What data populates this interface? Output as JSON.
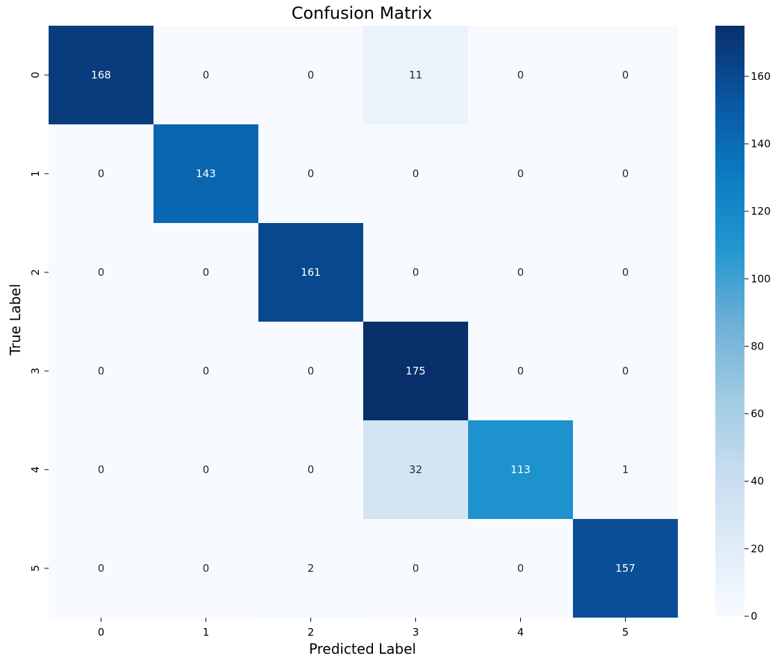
{
  "chart_data": {
    "type": "heatmap",
    "title": "Confusion Matrix",
    "xlabel": "Predicted Label",
    "ylabel": "True Label",
    "x_categories": [
      "0",
      "1",
      "2",
      "3",
      "4",
      "5"
    ],
    "y_categories": [
      "0",
      "1",
      "2",
      "3",
      "4",
      "5"
    ],
    "matrix": [
      [
        168,
        0,
        0,
        11,
        0,
        0
      ],
      [
        0,
        143,
        0,
        0,
        0,
        0
      ],
      [
        0,
        0,
        161,
        0,
        0,
        0
      ],
      [
        0,
        0,
        0,
        175,
        0,
        0
      ],
      [
        0,
        0,
        0,
        32,
        113,
        1
      ],
      [
        0,
        0,
        2,
        0,
        0,
        157
      ]
    ],
    "colormap": "Blues",
    "color_range": [
      0,
      175
    ],
    "colorbar_ticks": [
      0,
      20,
      40,
      60,
      80,
      100,
      120,
      140,
      160
    ],
    "colorbar_tick_labels": [
      "0",
      "20",
      "40",
      "60",
      "80",
      "100",
      "120",
      "140",
      "160"
    ],
    "grid": false,
    "colorbar_position": "right"
  }
}
